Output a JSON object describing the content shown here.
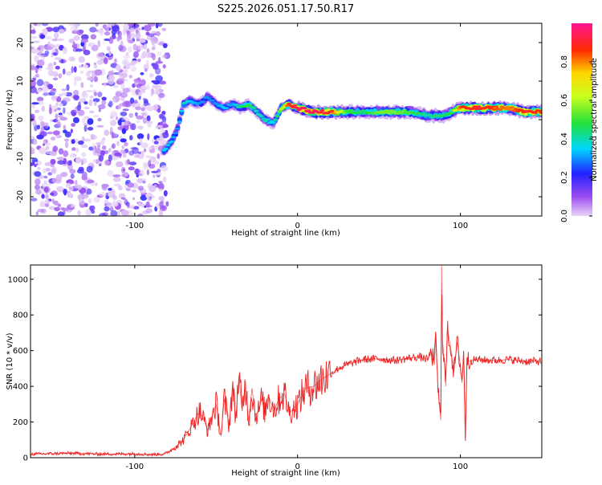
{
  "page": {
    "title": "S225.2026.051.17.50.R17"
  },
  "chart_data": [
    {
      "type": "heatmap",
      "name": "spectrogram",
      "title": "S225.2026.051.17.50.R17",
      "xlabel": "Height of straight line (km)",
      "ylabel": "Frequency (Hz)",
      "xlim": [
        -164,
        150
      ],
      "ylim": [
        -25,
        25
      ],
      "x_ticks": [
        -100,
        0,
        100
      ],
      "y_ticks": [
        -20,
        -10,
        0,
        10,
        20
      ],
      "colorbar": {
        "label": "Normalized spectral amplitude",
        "range": [
          0,
          1
        ],
        "ticks": [
          "0.0",
          "0.2",
          "0.4",
          "0.6",
          "0.8"
        ],
        "tick_values": [
          0,
          0.2,
          0.4,
          0.6,
          0.8
        ]
      },
      "noise_region_x": [
        -164,
        -80
      ],
      "ridge": {
        "x": [
          -82,
          -78,
          -74,
          -70,
          -66,
          -60,
          -55,
          -50,
          -45,
          -40,
          -35,
          -30,
          -25,
          -20,
          -15,
          -10,
          -5,
          0,
          10,
          20,
          30,
          40,
          50,
          60,
          70,
          80,
          85,
          90,
          95,
          100,
          110,
          120,
          130,
          140,
          150
        ],
        "frequency": [
          -8,
          -6,
          -3,
          4,
          5,
          4,
          6,
          4,
          3,
          4,
          3,
          4,
          2,
          0,
          -1,
          3,
          4,
          3,
          2,
          2,
          2,
          2,
          2,
          2,
          2,
          1,
          1,
          1,
          2,
          3,
          3,
          3,
          3,
          2,
          2
        ],
        "amplitude": [
          0.35,
          0.35,
          0.3,
          0.4,
          0.35,
          0.3,
          0.3,
          0.3,
          0.35,
          0.3,
          0.45,
          0.5,
          0.4,
          0.4,
          0.35,
          0.6,
          0.9,
          0.95,
          0.95,
          0.9,
          0.5,
          0.45,
          0.55,
          0.55,
          0.5,
          0.4,
          0.45,
          0.45,
          0.5,
          0.85,
          0.9,
          0.85,
          0.8,
          0.9,
          0.85
        ]
      }
    },
    {
      "type": "line",
      "name": "snr",
      "xlabel": "Height of straight line (km)",
      "ylabel": "SNR (10 * v/v)",
      "xlim": [
        -164,
        150
      ],
      "ylim": [
        0,
        1080
      ],
      "x_ticks": [
        -100,
        0,
        100
      ],
      "y_ticks": [
        0,
        200,
        400,
        600,
        800,
        1000
      ],
      "color": "#ee2222",
      "series": [
        {
          "name": "SNR",
          "x": [
            -164,
            -140,
            -120,
            -100,
            -90,
            -82,
            -78,
            -75,
            -70,
            -65,
            -62,
            -60,
            -57,
            -55,
            -52,
            -50,
            -47,
            -45,
            -42,
            -40,
            -38,
            -36,
            -34,
            -32,
            -30,
            -28,
            -26,
            -24,
            -22,
            -20,
            -18,
            -16,
            -14,
            -12,
            -10,
            -8,
            -5,
            0,
            5,
            10,
            15,
            20,
            25,
            30,
            40,
            50,
            60,
            70,
            75,
            80,
            82,
            84,
            85,
            86,
            87,
            88,
            88.5,
            89,
            90,
            91,
            92,
            94,
            96,
            98,
            100,
            101,
            102,
            103,
            104,
            105,
            110,
            120,
            130,
            140,
            150
          ],
          "values": [
            20,
            25,
            20,
            22,
            18,
            20,
            40,
            60,
            100,
            180,
            230,
            260,
            200,
            150,
            250,
            300,
            120,
            330,
            180,
            400,
            220,
            460,
            260,
            430,
            200,
            390,
            240,
            260,
            330,
            250,
            350,
            300,
            270,
            320,
            340,
            360,
            250,
            300,
            390,
            400,
            440,
            470,
            500,
            520,
            550,
            555,
            545,
            560,
            565,
            550,
            600,
            520,
            700,
            420,
            300,
            210,
            1080,
            650,
            560,
            400,
            720,
            620,
            480,
            650,
            520,
            420,
            600,
            110,
            560,
            540,
            550,
            545,
            550,
            540,
            540
          ]
        }
      ]
    }
  ]
}
